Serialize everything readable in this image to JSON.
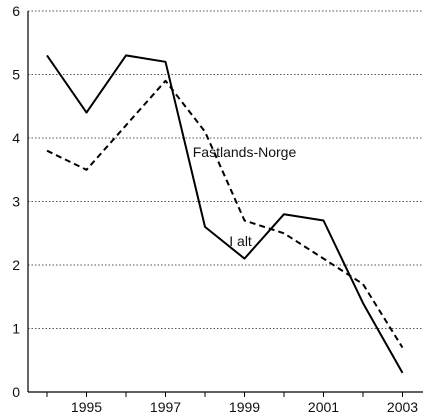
{
  "chart_data": {
    "type": "line",
    "title": "",
    "xlabel": "",
    "ylabel": "",
    "x": [
      1994,
      1995,
      1996,
      1997,
      1998,
      1999,
      2000,
      2001,
      2002,
      2003
    ],
    "x_tick_labels": [
      "1995",
      "1997",
      "1999",
      "2001",
      "2003"
    ],
    "y_tick_labels": [
      "0",
      "1",
      "2",
      "3",
      "4",
      "5",
      "6"
    ],
    "ylim": [
      0,
      6
    ],
    "grid": "horizontal dotted",
    "series": [
      {
        "name": "I alt",
        "style": "solid",
        "color": "#000000",
        "values": [
          5.3,
          4.4,
          5.3,
          5.2,
          2.6,
          2.1,
          2.8,
          2.7,
          1.4,
          0.3
        ],
        "label_year": 1998.9,
        "label_value": 2.3
      },
      {
        "name": "Fastlands-Norge",
        "style": "dashed",
        "color": "#000000",
        "values": [
          3.8,
          3.5,
          4.2,
          4.9,
          4.1,
          2.7,
          2.5,
          2.1,
          1.7,
          0.7
        ],
        "label_year": 1999.0,
        "label_value": 3.7
      }
    ]
  }
}
